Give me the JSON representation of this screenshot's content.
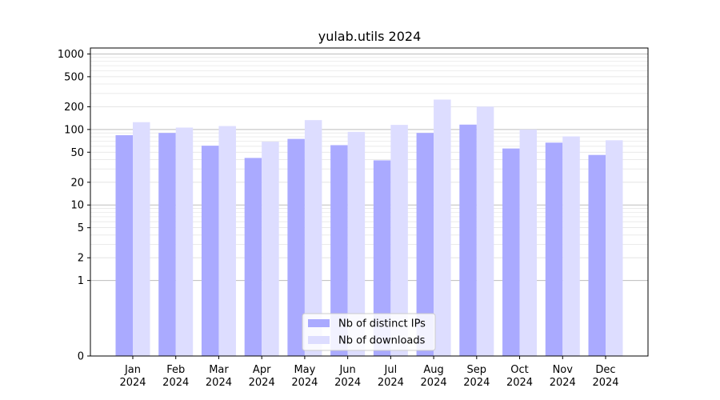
{
  "chart_data": {
    "type": "bar",
    "title": "yulab.utils 2024",
    "xlabel": "",
    "ylabel": "",
    "categories": [
      {
        "month": "Jan",
        "year": "2024"
      },
      {
        "month": "Feb",
        "year": "2024"
      },
      {
        "month": "Mar",
        "year": "2024"
      },
      {
        "month": "Apr",
        "year": "2024"
      },
      {
        "month": "May",
        "year": "2024"
      },
      {
        "month": "Jun",
        "year": "2024"
      },
      {
        "month": "Jul",
        "year": "2024"
      },
      {
        "month": "Aug",
        "year": "2024"
      },
      {
        "month": "Sep",
        "year": "2024"
      },
      {
        "month": "Oct",
        "year": "2024"
      },
      {
        "month": "Nov",
        "year": "2024"
      },
      {
        "month": "Dec",
        "year": "2024"
      }
    ],
    "series": [
      {
        "name": "Nb of distinct IPs",
        "color": "#aaaaff",
        "values": [
          84,
          90,
          61,
          42,
          75,
          62,
          39,
          90,
          116,
          56,
          67,
          46
        ]
      },
      {
        "name": "Nb of downloads",
        "color": "#ddddff",
        "values": [
          125,
          106,
          111,
          69,
          133,
          93,
          115,
          249,
          201,
          100,
          81,
          72
        ]
      }
    ],
    "y_scale": "symlog",
    "ylim": [
      0,
      1200
    ],
    "y_ticks": [
      0,
      1,
      2,
      5,
      10,
      20,
      50,
      100,
      200,
      500,
      1000
    ],
    "grid": "horizontal",
    "legend_position": "bottom-center"
  }
}
